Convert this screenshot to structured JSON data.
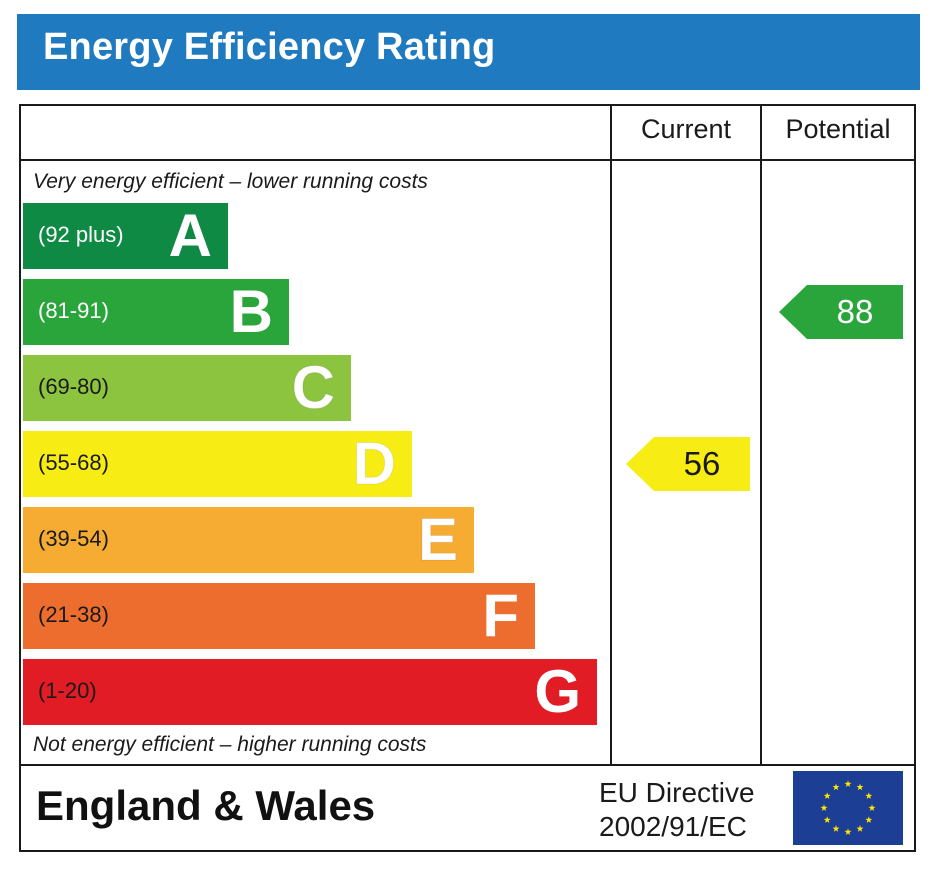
{
  "title": "Energy Efficiency Rating",
  "columns": {
    "current": "Current",
    "potential": "Potential"
  },
  "notes": {
    "top": "Very energy efficient – lower running costs",
    "bottom": "Not energy efficient – higher running costs"
  },
  "colors": {
    "title_bg": "#1f7ac0",
    "A": "#0f8a44",
    "B": "#2aa53b",
    "C": "#8cc43f",
    "D": "#f7ec13",
    "E": "#f6ab33",
    "F": "#ec6d2d",
    "G": "#e21c24"
  },
  "chart_data": {
    "type": "bar",
    "title": "Energy Efficiency Rating",
    "bands": [
      {
        "letter": "A",
        "range": "(92 plus)",
        "min": 92,
        "max": 100,
        "color": "#0f8a44"
      },
      {
        "letter": "B",
        "range": "(81-91)",
        "min": 81,
        "max": 91,
        "color": "#2aa53b"
      },
      {
        "letter": "C",
        "range": "(69-80)",
        "min": 69,
        "max": 80,
        "color": "#8cc43f"
      },
      {
        "letter": "D",
        "range": "(55-68)",
        "min": 55,
        "max": 68,
        "color": "#f7ec13"
      },
      {
        "letter": "E",
        "range": "(39-54)",
        "min": 39,
        "max": 54,
        "color": "#f6ab33"
      },
      {
        "letter": "F",
        "range": "(21-38)",
        "min": 21,
        "max": 38,
        "color": "#ec6d2d"
      },
      {
        "letter": "G",
        "range": "(1-20)",
        "min": 1,
        "max": 20,
        "color": "#e21c24"
      }
    ],
    "current": {
      "value": 56,
      "band": "D",
      "color": "#f7ec13"
    },
    "potential": {
      "value": 88,
      "band": "B",
      "color": "#2aa53b"
    }
  },
  "footer": {
    "region": "England & Wales",
    "directive_line1": "EU Directive",
    "directive_line2": "2002/91/EC"
  }
}
